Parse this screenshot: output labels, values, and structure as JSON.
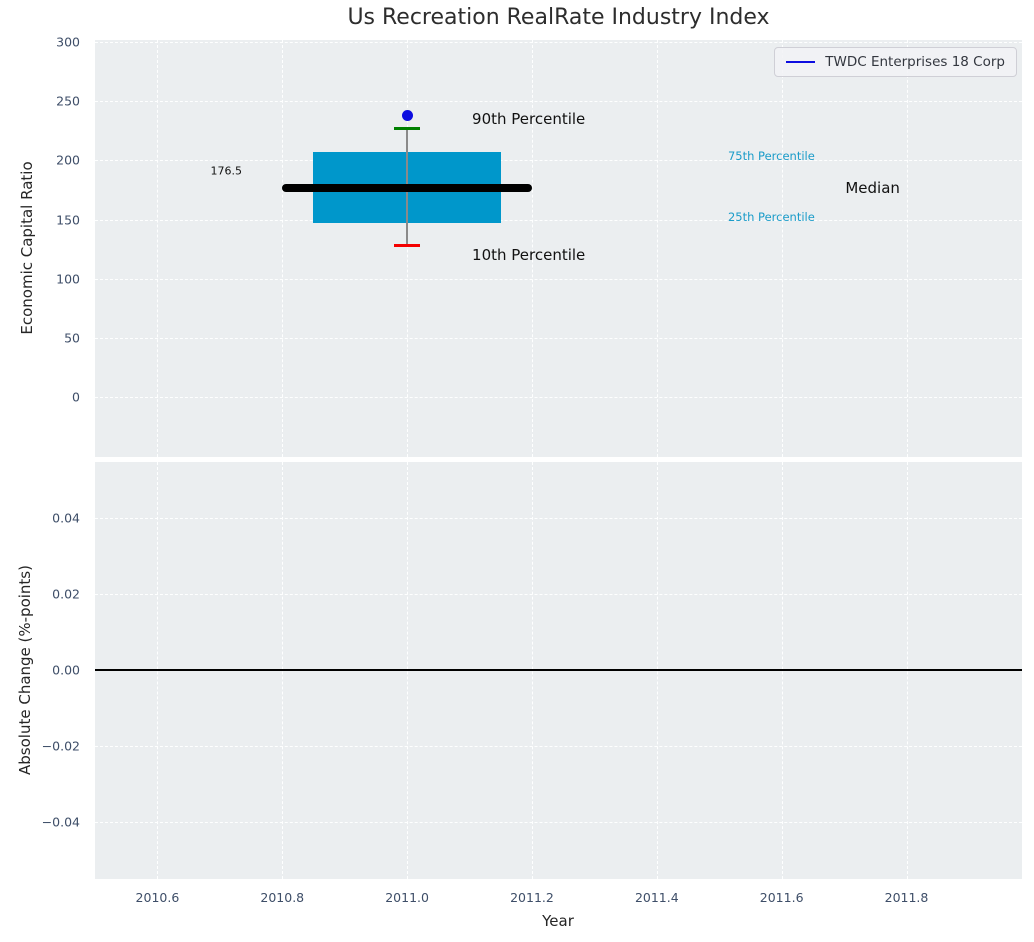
{
  "title": "Us Recreation RealRate Industry Index",
  "accent_colors": {
    "box_fill": "#0097cb",
    "percentile_text": "#1b9cc9",
    "company_blue": "#0d0de0",
    "cap_90th_green": "#008000",
    "cap_10th_red": "#f40000",
    "median_black": "#000000"
  },
  "chart_data": [
    {
      "type": "boxplot",
      "title": "Us Recreation RealRate Industry Index",
      "ylabel": "Economic Capital Ratio",
      "grid": "white-dashed",
      "legend_position": "upper right",
      "legend": [
        {
          "label": "TWDC Enterprises 18 Corp",
          "color": "#0d0de0"
        }
      ],
      "xlim": [
        2010.5,
        2011.985
      ],
      "ylim": [
        -50.5,
        301.7
      ],
      "xticks": [
        2010.6,
        2010.8,
        2011.0,
        2011.2,
        2011.4,
        2011.6,
        2011.8
      ],
      "xtick_labels": [
        "2010.6",
        "2010.8",
        "2011.0",
        "2011.2",
        "2011.4",
        "2011.6",
        "2011.8"
      ],
      "yticks": [
        0,
        50,
        100,
        150,
        200,
        250,
        300
      ],
      "ytick_labels": [
        "0",
        "50",
        "100",
        "150",
        "200",
        "250",
        "300"
      ],
      "box": {
        "x": 2011.0,
        "box_x_range": [
          2010.85,
          2011.15
        ],
        "median_x_range": [
          2010.8,
          2011.2
        ],
        "p10": 128,
        "p25": 147,
        "median": 176.5,
        "p75": 207.5,
        "p90": 227,
        "company_point": {
          "x": 2011.0,
          "y": 238,
          "series": "TWDC Enterprises 18 Corp"
        }
      },
      "annotations": [
        {
          "text": "90th Percentile",
          "x": 2011.104,
          "y": 235,
          "color": "#111111",
          "size": 15
        },
        {
          "text": "10th Percentile",
          "x": 2011.104,
          "y": 120,
          "color": "#111111",
          "size": 15
        },
        {
          "text": "176.5",
          "x": 2010.685,
          "y": 191,
          "color": "#111111",
          "size": 11
        },
        {
          "text": "75th Percentile",
          "x": 2011.514,
          "y": 204,
          "color": "#1b9cc9",
          "size": 11.5
        },
        {
          "text": "25th Percentile",
          "x": 2011.514,
          "y": 152,
          "color": "#1b9cc9",
          "size": 11.5
        },
        {
          "text": "Median",
          "x": 2011.702,
          "y": 177,
          "color": "#111111",
          "size": 15
        }
      ]
    },
    {
      "type": "line",
      "xlabel": "Year",
      "ylabel": "Absolute Change (%-points)",
      "grid": "white-dashed",
      "xlim": [
        2010.5,
        2011.985
      ],
      "ylim": [
        -0.055,
        0.0547
      ],
      "xticks": [
        2010.6,
        2010.8,
        2011.0,
        2011.2,
        2011.4,
        2011.6,
        2011.8
      ],
      "xtick_labels": [
        "2010.6",
        "2010.8",
        "2011.0",
        "2011.2",
        "2011.4",
        "2011.6",
        "2011.8"
      ],
      "yticks": [
        0.04,
        0.02,
        0.0,
        -0.02,
        -0.04
      ],
      "ytick_labels": [
        "0.04",
        "0.02",
        "0.00",
        "−0.02",
        "−0.04"
      ],
      "zero_line_y": 0.0
    }
  ]
}
